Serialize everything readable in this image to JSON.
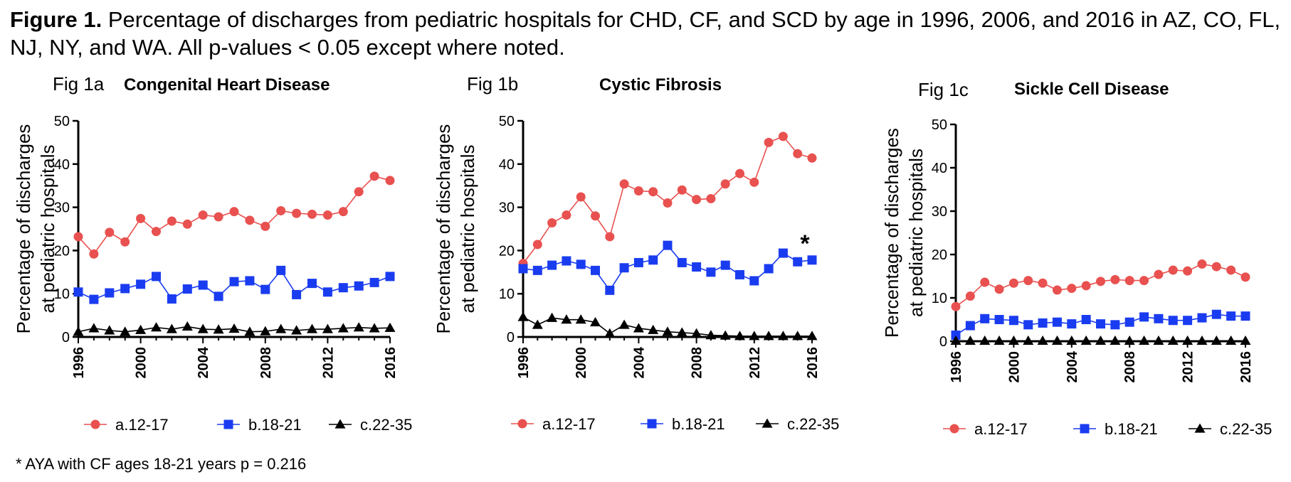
{
  "caption": {
    "label": "Figure 1.",
    "text": "Percentage of discharges from pediatric hospitals for CHD, CF, and SCD by age in 1996, 2006, and 2016 in AZ, CO, FL, NJ, NY, and WA. All p-values < 0.05 except where noted."
  },
  "footnote": "* AYA with CF ages 18-21 years p = 0.216",
  "colors": {
    "a": "#e8514f",
    "b": "#1a3cf0",
    "c": "#000000"
  },
  "chart_data": [
    {
      "type": "line",
      "panel_label": "Fig 1a",
      "title": "Congenital Heart Disease",
      "ylabel": "Percentage of discharges at pediatric hospitals",
      "xlabel": "",
      "ylim": [
        0,
        50
      ],
      "yticks": [
        0,
        10,
        20,
        30,
        40,
        50
      ],
      "xlim": [
        1996,
        2016
      ],
      "xticks": [
        "1996",
        "2000",
        "2004",
        "2008",
        "2012",
        "2016"
      ],
      "legend": "bottom",
      "x": [
        1996,
        1997,
        1998,
        1999,
        2000,
        2001,
        2002,
        2003,
        2004,
        2005,
        2006,
        2007,
        2008,
        2009,
        2010,
        2011,
        2012,
        2013,
        2014,
        2015,
        2016
      ],
      "series": [
        {
          "name": "a.12-17",
          "marker": "circle",
          "values": [
            23.2,
            19.2,
            24.2,
            22.0,
            27.4,
            24.4,
            26.8,
            26.1,
            28.2,
            27.8,
            29.0,
            27.0,
            25.6,
            29.2,
            28.6,
            28.4,
            28.2,
            29.0,
            33.6,
            37.2,
            36.2
          ]
        },
        {
          "name": "b.18-21",
          "marker": "square",
          "values": [
            10.4,
            8.7,
            10.2,
            11.2,
            12.2,
            14.0,
            8.8,
            11.1,
            12.0,
            9.4,
            12.8,
            13.0,
            11.0,
            15.4,
            9.8,
            12.4,
            10.4,
            11.4,
            11.8,
            12.6,
            14.0
          ]
        },
        {
          "name": "c.22-35",
          "marker": "triangle",
          "values": [
            1.2,
            2.0,
            1.5,
            1.2,
            1.6,
            2.2,
            1.8,
            2.4,
            1.8,
            1.7,
            1.9,
            1.2,
            1.3,
            1.8,
            1.5,
            1.8,
            1.8,
            2.0,
            2.2,
            2.0,
            2.1
          ]
        }
      ]
    },
    {
      "type": "line",
      "panel_label": "Fig 1b",
      "title": "Cystic Fibrosis",
      "ylabel": "Percentage of discharges at pediatric hospitals",
      "xlabel": "",
      "ylim": [
        0,
        50
      ],
      "yticks": [
        0,
        10,
        20,
        30,
        40,
        50
      ],
      "xlim": [
        1996,
        2016
      ],
      "xticks": [
        "1996",
        "2000",
        "2004",
        "2008",
        "2012",
        "2016"
      ],
      "legend": "bottom",
      "annotation": "*",
      "x": [
        1996,
        1997,
        1998,
        1999,
        2000,
        2001,
        2002,
        2003,
        2004,
        2005,
        2006,
        2007,
        2008,
        2009,
        2010,
        2011,
        2012,
        2013,
        2014,
        2015,
        2016
      ],
      "series": [
        {
          "name": "a.12-17",
          "marker": "circle",
          "values": [
            17.0,
            21.4,
            26.4,
            28.2,
            32.4,
            28.0,
            23.2,
            35.4,
            33.8,
            33.6,
            31.0,
            34.0,
            31.8,
            32.0,
            35.4,
            37.8,
            35.8,
            45.0,
            46.4,
            42.4,
            41.4
          ]
        },
        {
          "name": "b.18-21",
          "marker": "square",
          "values": [
            15.8,
            15.4,
            16.6,
            17.6,
            16.8,
            15.4,
            10.8,
            16.0,
            17.2,
            17.8,
            21.2,
            17.2,
            16.2,
            15.0,
            16.6,
            14.4,
            13.0,
            15.8,
            19.4,
            17.4,
            17.8
          ]
        },
        {
          "name": "c.22-35",
          "marker": "triangle",
          "values": [
            4.6,
            2.8,
            4.4,
            4.0,
            4.0,
            3.4,
            0.8,
            2.8,
            2.0,
            1.6,
            1.2,
            1.0,
            0.8,
            0.4,
            0.3,
            0.2,
            0.2,
            0.2,
            0.2,
            0.2,
            0.2
          ]
        }
      ]
    },
    {
      "type": "line",
      "panel_label": "Fig 1c",
      "title": "Sickle Cell Disease",
      "ylabel": "Percentage of discharges at pediatric hospitals",
      "xlabel": "",
      "ylim": [
        0,
        50
      ],
      "yticks": [
        0,
        10,
        20,
        30,
        40,
        50
      ],
      "xlim": [
        1996,
        2016
      ],
      "xticks": [
        "1996",
        "2000",
        "2004",
        "2008",
        "2012",
        "2016"
      ],
      "legend": "bottom",
      "x": [
        1996,
        1997,
        1998,
        1999,
        2000,
        2001,
        2002,
        2003,
        2004,
        2005,
        2006,
        2007,
        2008,
        2009,
        2010,
        2011,
        2012,
        2013,
        2014,
        2015,
        2016
      ],
      "series": [
        {
          "name": "a.12-17",
          "marker": "circle",
          "values": [
            8.0,
            10.4,
            13.6,
            12.0,
            13.4,
            14.0,
            13.4,
            11.8,
            12.2,
            12.8,
            13.8,
            14.2,
            14.0,
            14.0,
            15.4,
            16.4,
            16.2,
            17.8,
            17.2,
            16.4,
            14.8
          ]
        },
        {
          "name": "b.18-21",
          "marker": "square",
          "values": [
            1.4,
            3.6,
            5.2,
            5.0,
            4.8,
            3.8,
            4.2,
            4.4,
            4.0,
            5.0,
            4.0,
            3.8,
            4.4,
            5.6,
            5.2,
            4.8,
            4.8,
            5.4,
            6.2,
            5.8,
            5.8
          ]
        },
        {
          "name": "c.22-35",
          "marker": "triangle",
          "values": [
            0.1,
            0.1,
            0.1,
            0.1,
            0.1,
            0.1,
            0.1,
            0.1,
            0.1,
            0.1,
            0.1,
            0.1,
            0.1,
            0.1,
            0.1,
            0.1,
            0.1,
            0.1,
            0.1,
            0.1,
            0.1
          ]
        }
      ]
    }
  ]
}
